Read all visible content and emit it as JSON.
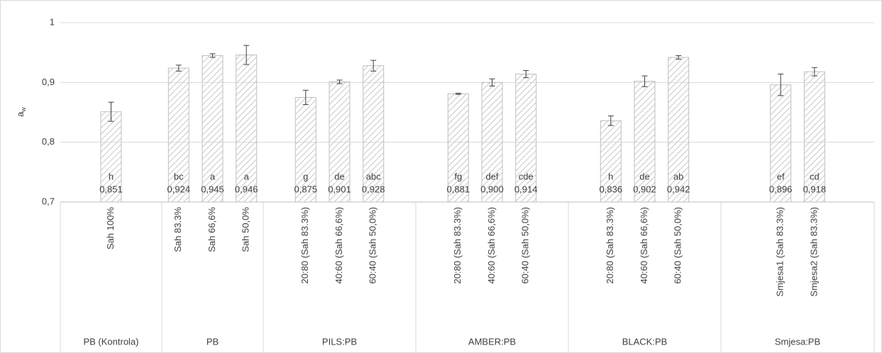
{
  "chart_data": {
    "type": "bar",
    "y_label": "a",
    "y_label_sub": "w",
    "ylim": [
      0.7,
      1
    ],
    "yticks": [
      {
        "value": 0.7,
        "label": "0,7"
      },
      {
        "value": 0.8,
        "label": "0,8"
      },
      {
        "value": 0.9,
        "label": "0,9"
      },
      1
    ],
    "grid": true,
    "color": "#bfbfbf",
    "groups": [
      {
        "name": "PB (Kontrola)",
        "categories": [
          "Sah 100%"
        ],
        "values": [
          0.851
        ],
        "errors": [
          0.016
        ],
        "value_labels": [
          "0,851"
        ],
        "letters": [
          "h"
        ]
      },
      {
        "name": "PB",
        "categories": [
          "Sah 83.3%",
          "Sah 66,6%",
          "Sah 50,0%"
        ],
        "values": [
          0.924,
          0.945,
          0.946
        ],
        "errors": [
          0.005,
          0.003,
          0.016
        ],
        "value_labels": [
          "0,924",
          "0,945",
          "0,946"
        ],
        "letters": [
          "bc",
          "a",
          "a"
        ]
      },
      {
        "name": "PILS:PB",
        "categories": [
          "20:80 (Sah 83.3%)",
          "40:60 (Sah 66,6%)",
          "60:40 (Sah 50,0%)"
        ],
        "values": [
          0.875,
          0.901,
          0.928
        ],
        "errors": [
          0.012,
          0.003,
          0.009
        ],
        "value_labels": [
          "0,875",
          "0,901",
          "0,928"
        ],
        "letters": [
          "g",
          "de",
          "abc"
        ]
      },
      {
        "name": "AMBER:PB",
        "categories": [
          "20:80 (Sah 83.3%)",
          "40:60 (Sah 66,6%)",
          "60:40 (Sah 50,0%)"
        ],
        "values": [
          0.881,
          0.9,
          0.914
        ],
        "errors": [
          0.001,
          0.006,
          0.006
        ],
        "value_labels": [
          "0,881",
          "0,900",
          "0,914"
        ],
        "letters": [
          "fg",
          "def",
          "cde"
        ]
      },
      {
        "name": "BLACK:PB",
        "categories": [
          "20:80 (Sah 83.3%)",
          "40:60 (Sah 66,6%)",
          "60:40 (Sah 50,0%)"
        ],
        "values": [
          0.836,
          0.902,
          0.942
        ],
        "errors": [
          0.008,
          0.009,
          0.003
        ],
        "value_labels": [
          "0,836",
          "0,902",
          "0,942"
        ],
        "letters": [
          "h",
          "de",
          "ab"
        ]
      },
      {
        "name": "Smjesa:PB",
        "categories": [
          "Smjesa1 (Sah 83.3%)",
          "Smjesa2 (Sah 83.3%)"
        ],
        "values": [
          0.896,
          0.918
        ],
        "errors": [
          0.018,
          0.007
        ],
        "value_labels": [
          "0,896",
          "0,918"
        ],
        "letters": [
          "ef",
          "cd"
        ]
      }
    ]
  }
}
